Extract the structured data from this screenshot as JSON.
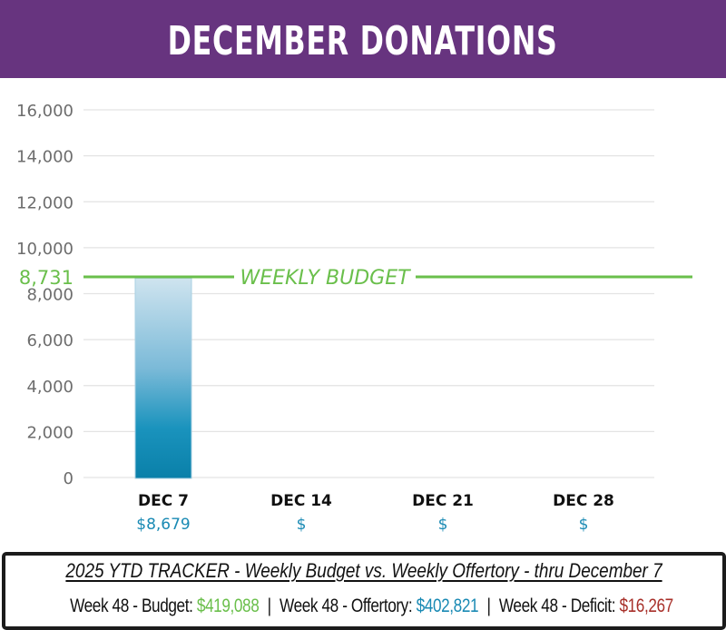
{
  "header": {
    "title": "DECEMBER DONATIONS"
  },
  "colors": {
    "header_bg": "#67347f",
    "budget_green": "#6abf4b",
    "bar_top": "#c9e1ee",
    "bar_mid": "#4fa5c9",
    "bar_bottom": "#0a84ad",
    "amount_teal": "#1a8ab4",
    "deficit_red": "#a8302a",
    "grid": "#e3e3e3",
    "axis_text": "#6d6d6d"
  },
  "chart_data": {
    "type": "bar",
    "title": "DECEMBER DONATIONS",
    "xlabel": "",
    "ylabel": "",
    "ylim": [
      0,
      16000
    ],
    "yticks": [
      0,
      2000,
      4000,
      6000,
      8000,
      10000,
      12000,
      14000,
      16000
    ],
    "ytick_labels": [
      "0",
      "2,000",
      "4,000",
      "6,000",
      "8,000",
      "10,000",
      "12,000",
      "14,000",
      "16,000"
    ],
    "grid": true,
    "categories": [
      "DEC 7",
      "DEC 14",
      "DEC 21",
      "DEC 28"
    ],
    "values": [
      8679,
      null,
      null,
      null
    ],
    "value_labels": [
      "$8,679",
      "$",
      "$",
      "$"
    ],
    "reference_line": {
      "label": "WEEKLY BUDGET",
      "value": 8731,
      "value_label": "8,731"
    }
  },
  "tracker": {
    "title": "2025 YTD TRACKER  -  Weekly Budget  vs. Weekly Offertory  -  thru December 7",
    "budget_label": "Week 48 - Budget:",
    "budget_value": "$419,088",
    "offertory_label": "Week 48 - Offertory:",
    "offertory_value": "$402,821",
    "deficit_label": "Week 48 - Deficit:",
    "deficit_value": "$16,267",
    "separator": "|"
  }
}
